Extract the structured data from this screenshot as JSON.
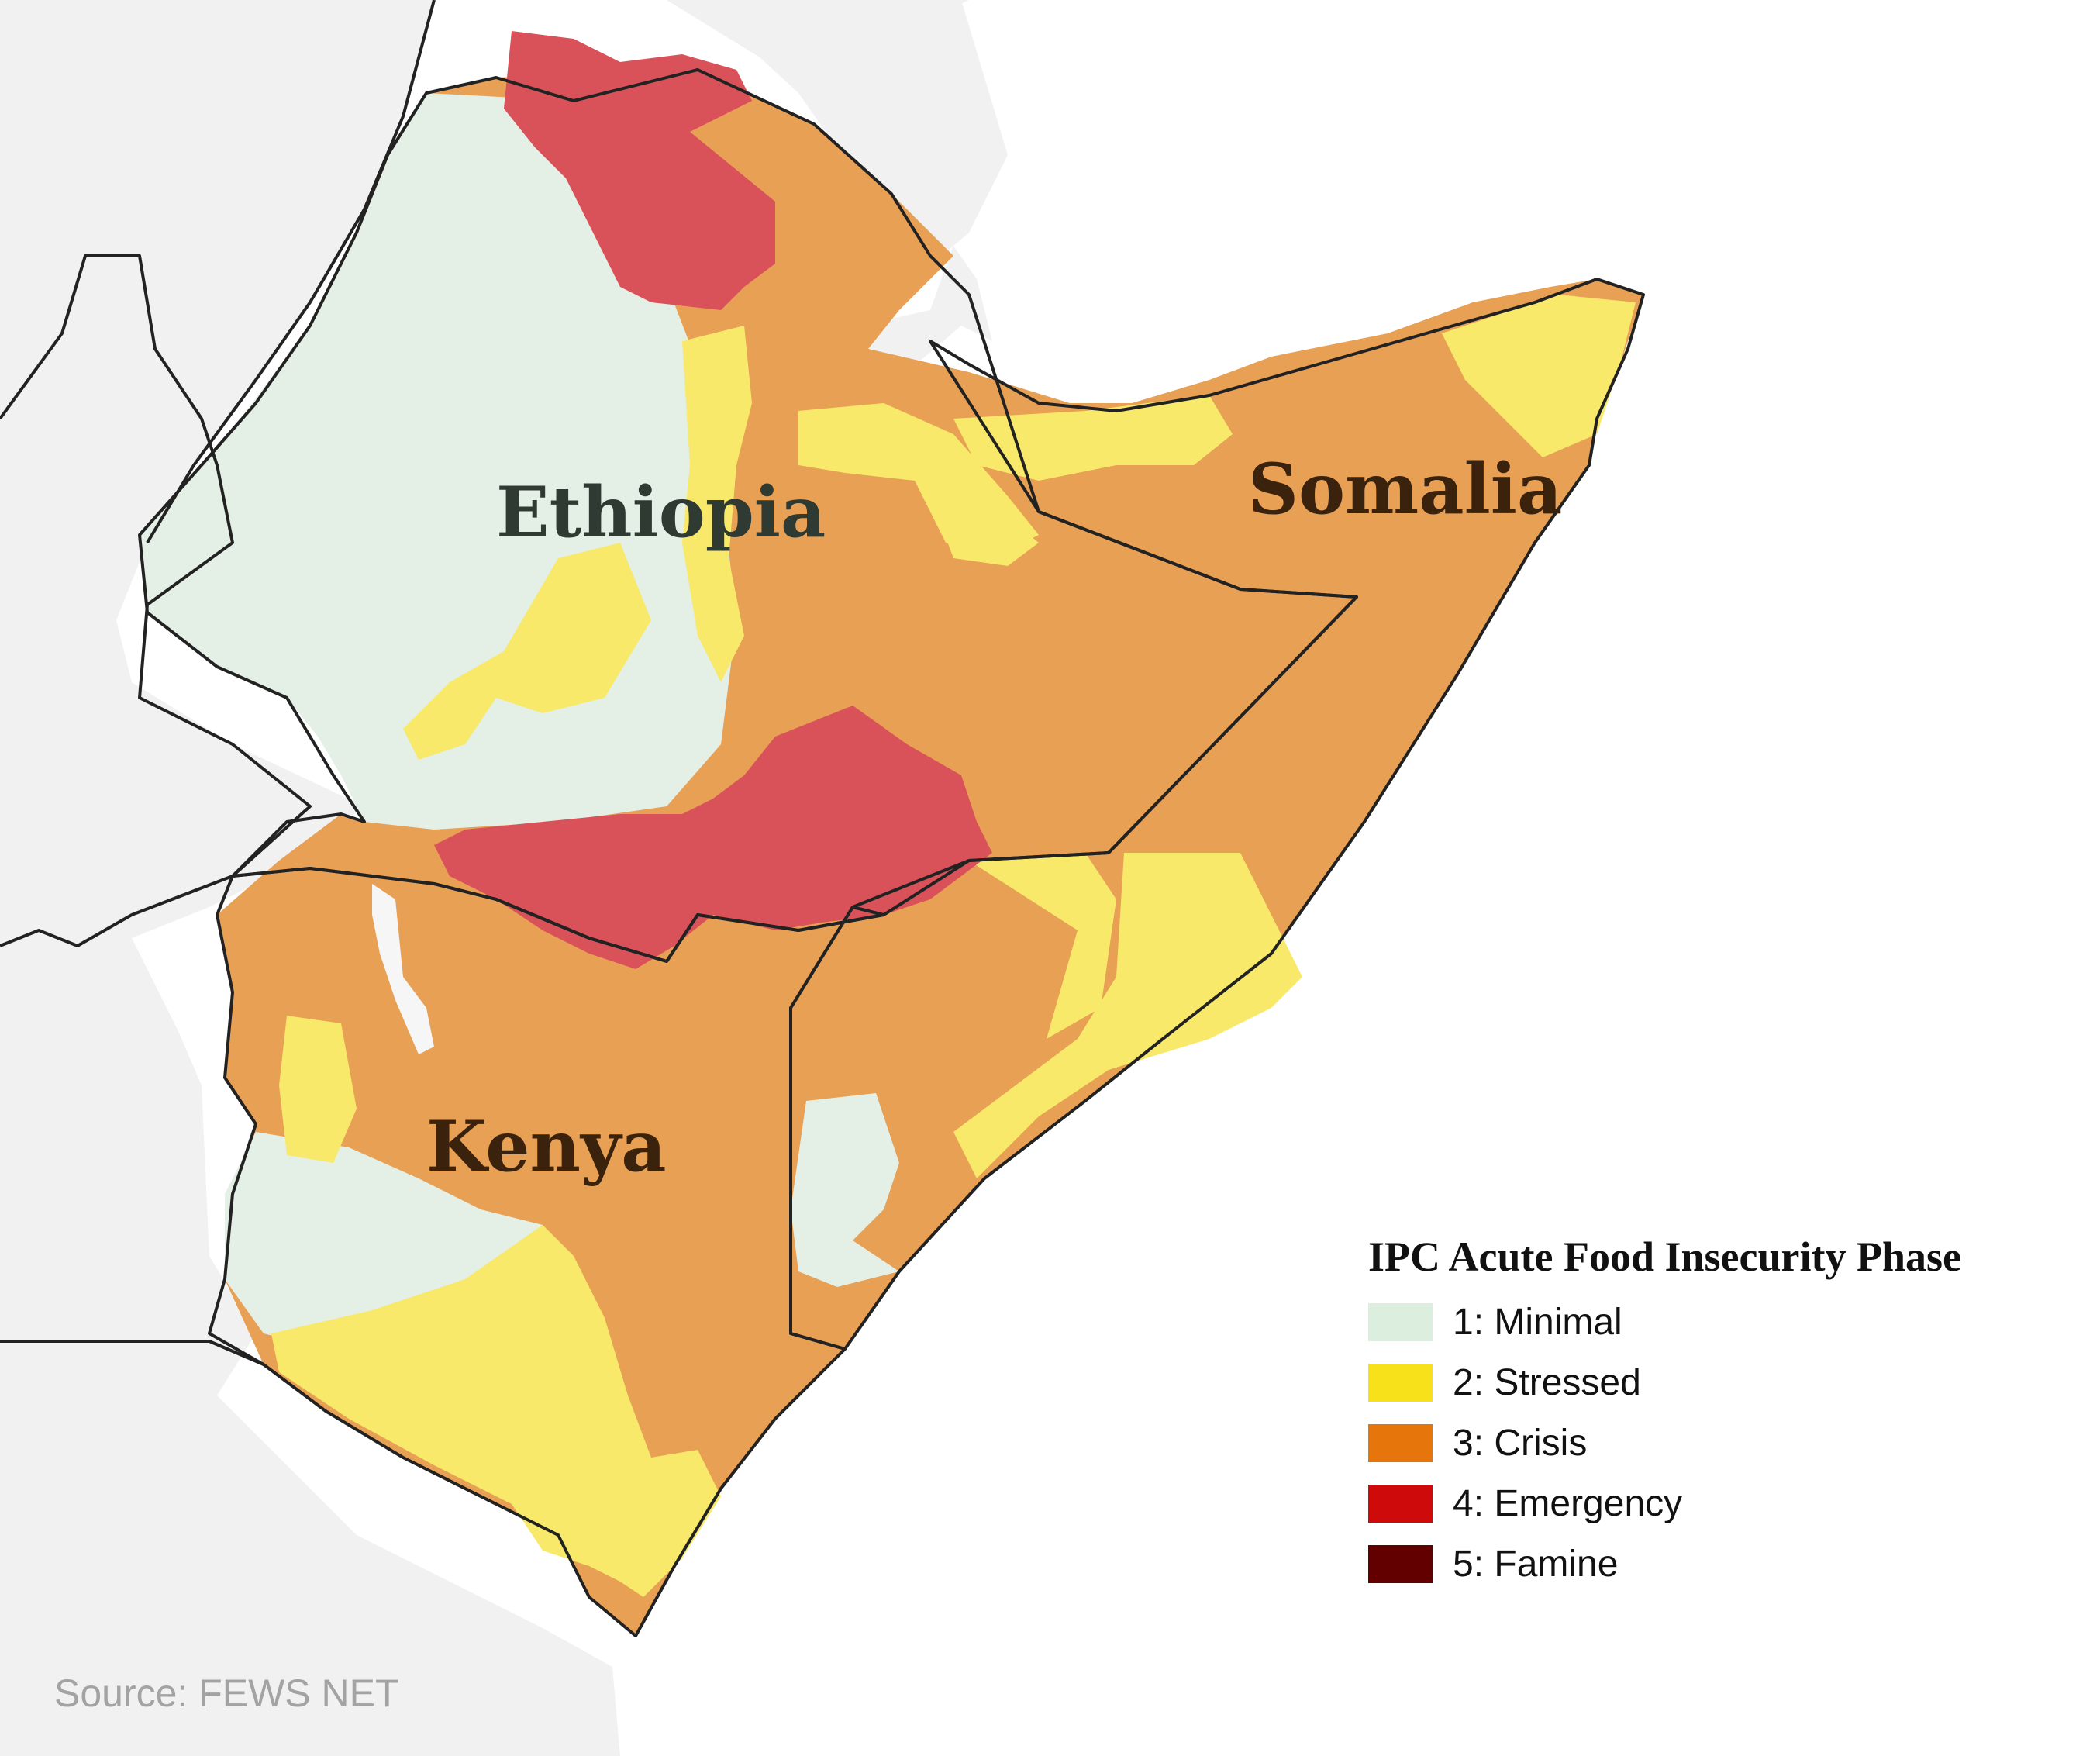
{
  "map": {
    "labels": {
      "ethiopia": "Ethiopia",
      "somalia": "Somalia",
      "kenya": "Kenya"
    },
    "colors": {
      "background_land": "#f1f1f1",
      "sea": "#ffffff",
      "border": "#222222"
    }
  },
  "legend": {
    "title": "IPC Acute Food Insecurity Phase",
    "items": [
      {
        "label": "1: Minimal",
        "color": "#dcefdf"
      },
      {
        "label": "2: Stressed",
        "color": "#f7e11a"
      },
      {
        "label": "3: Crisis",
        "color": "#e6760b"
      },
      {
        "label": "4: Emergency",
        "color": "#cf0a0a"
      },
      {
        "label": "5: Famine",
        "color": "#620000"
      }
    ],
    "map_fill_colors": {
      "minimal": "#e4efe6",
      "stressed": "#f8e96a",
      "crisis": "#e8a055",
      "emergency": "#d9525a"
    }
  },
  "source": "Source: FEWS NET"
}
